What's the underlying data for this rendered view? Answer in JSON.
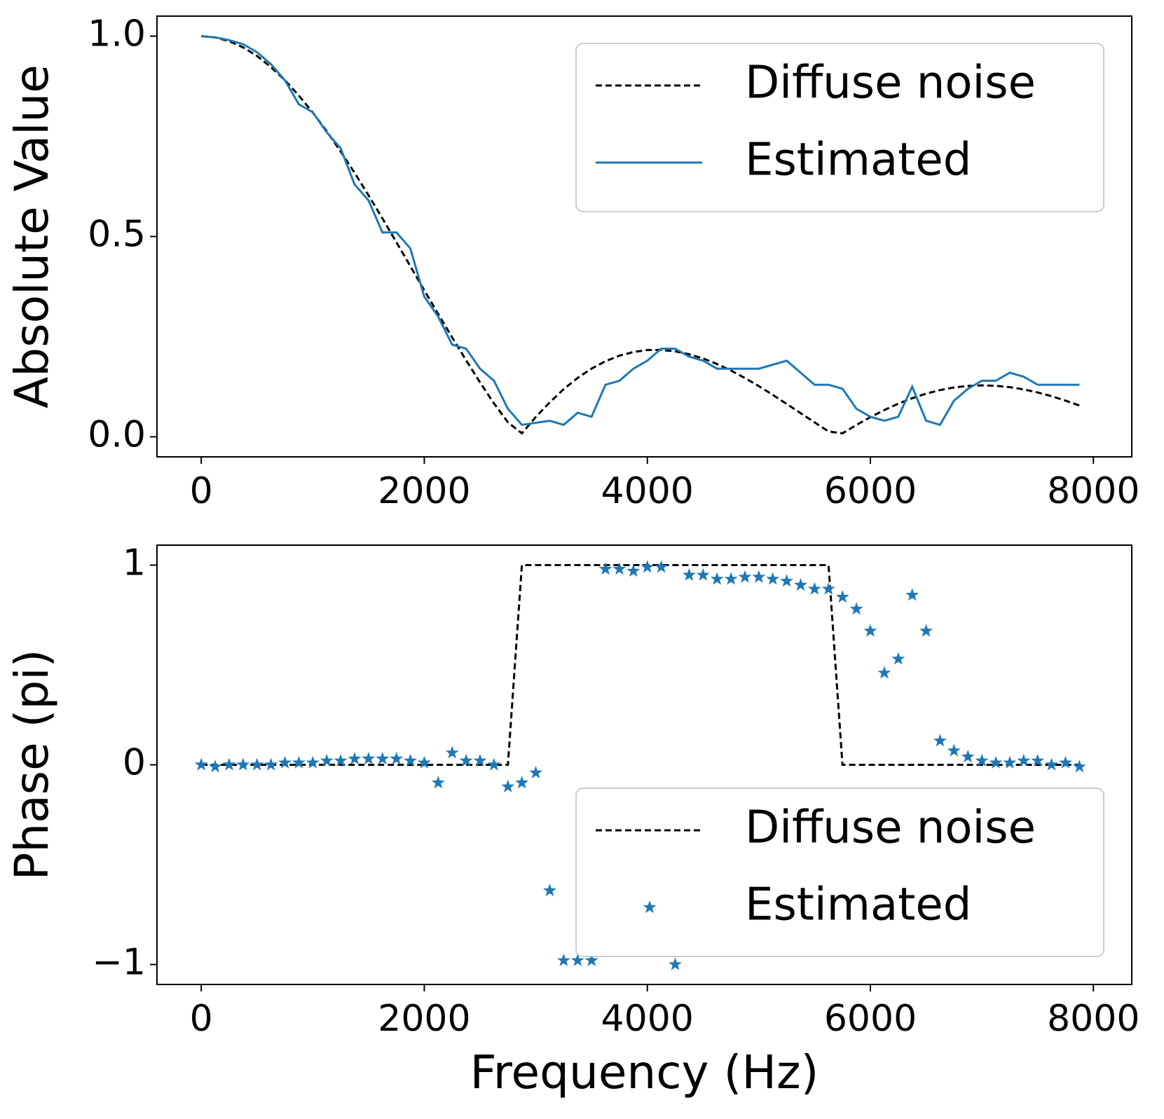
{
  "chart_data": [
    {
      "type": "line",
      "ylabel": "Absolute Value",
      "x": [
        0,
        125,
        250,
        375,
        500,
        625,
        750,
        875,
        1000,
        1125,
        1250,
        1375,
        1500,
        1625,
        1750,
        1875,
        2000,
        2125,
        2250,
        2375,
        2500,
        2625,
        2750,
        2875,
        3000,
        3125,
        3250,
        3375,
        3500,
        3625,
        3750,
        3875,
        4000,
        4125,
        4250,
        4375,
        4500,
        4625,
        4750,
        4875,
        5000,
        5125,
        5250,
        5375,
        5500,
        5625,
        5750,
        5875,
        6000,
        6125,
        6250,
        6375,
        6500,
        6625,
        6750,
        6875,
        7000,
        7125,
        7250,
        7375,
        7500,
        7625,
        7750,
        7875
      ],
      "series": [
        {
          "name": "Diffuse noise",
          "color": "#000000",
          "style": "dashed",
          "values": [
            1,
            0.9968,
            0.9874,
            0.972,
            0.9507,
            0.9227,
            0.8899,
            0.8519,
            0.8094,
            0.7627,
            0.7122,
            0.6588,
            0.6027,
            0.5447,
            0.4855,
            0.4256,
            0.3657,
            0.3064,
            0.2481,
            0.191,
            0.1359,
            0.0833,
            0.0363,
            0.0087,
            0.0497,
            0.0861,
            0.1189,
            0.1471,
            0.1702,
            0.1887,
            0.2026,
            0.2117,
            0.2165,
            0.2169,
            0.2134,
            0.2061,
            0.1955,
            0.1818,
            0.1654,
            0.1468,
            0.1265,
            0.1047,
            0.0821,
            0.059,
            0.036,
            0.0133,
            0.0087,
            0.0296,
            0.0491,
            0.0669,
            0.0827,
            0.0964,
            0.1077,
            0.1166,
            0.1231,
            0.127,
            0.1284,
            0.1273,
            0.124,
            0.1184,
            0.1108,
            0.1014,
            0.0903,
            0.078
          ]
        },
        {
          "name": "Estimated",
          "color": "#1f77b4",
          "style": "solid",
          "values": [
            1.0,
            0.997,
            0.99,
            0.98,
            0.96,
            0.93,
            0.89,
            0.83,
            0.81,
            0.76,
            0.72,
            0.63,
            0.59,
            0.51,
            0.51,
            0.47,
            0.35,
            0.3,
            0.23,
            0.22,
            0.17,
            0.14,
            0.07,
            0.03,
            0.035,
            0.04,
            0.03,
            0.06,
            0.05,
            0.13,
            0.14,
            0.17,
            0.19,
            0.22,
            0.22,
            0.2,
            0.19,
            0.17,
            0.17,
            0.17,
            0.17,
            0.18,
            0.19,
            0.16,
            0.13,
            0.13,
            0.12,
            0.07,
            0.05,
            0.04,
            0.05,
            0.125,
            0.04,
            0.03,
            0.09,
            0.12,
            0.14,
            0.14,
            0.16,
            0.15,
            0.13,
            0.13,
            0.13,
            0.13
          ]
        }
      ],
      "xlim": [
        -397,
        8344
      ],
      "xticks": [
        0,
        2000,
        4000,
        6000,
        8000
      ],
      "ylim": [
        -0.05,
        1.05
      ],
      "yticks": [
        {
          "value": 0,
          "label": "0.0"
        },
        0.5,
        {
          "value": 1,
          "label": "1.0"
        }
      ],
      "legend": "upper right"
    },
    {
      "type": "line",
      "ylabel": "Phase (pi)",
      "xlabel": "Frequency (Hz)",
      "x": [
        0,
        125,
        250,
        375,
        500,
        625,
        750,
        875,
        1000,
        1125,
        1250,
        1375,
        1500,
        1625,
        1750,
        1875,
        2000,
        2125,
        2250,
        2375,
        2500,
        2625,
        2750,
        2875,
        3000,
        3125,
        3250,
        3375,
        3500,
        3625,
        3750,
        3875,
        4000,
        4125,
        4250,
        4375,
        4500,
        4625,
        4750,
        4875,
        5000,
        5125,
        5250,
        5375,
        5500,
        5625,
        5750,
        5875,
        6000,
        6125,
        6250,
        6375,
        6500,
        6625,
        6750,
        6875,
        7000,
        7125,
        7250,
        7375,
        7500,
        7625,
        7750,
        7875
      ],
      "series": [
        {
          "name": "Diffuse noise",
          "color": "#000000",
          "style": "dashed",
          "values": [
            0,
            0,
            0,
            0,
            0,
            0,
            0,
            0,
            0,
            0,
            0,
            0,
            0,
            0,
            0,
            0,
            0,
            0,
            0,
            0,
            0,
            0,
            0,
            1,
            1,
            1,
            1,
            1,
            1,
            1,
            1,
            1,
            1,
            1,
            1,
            1,
            1,
            1,
            1,
            1,
            1,
            1,
            1,
            1,
            1,
            1,
            0,
            0,
            0,
            0,
            0,
            0,
            0,
            0,
            0,
            0,
            0,
            0,
            0,
            0,
            0,
            0,
            0,
            0
          ]
        },
        {
          "name": "Estimated",
          "color": "#1f77b4",
          "style": "markers",
          "values": [
            0,
            -0.01,
            0,
            0,
            0,
            0,
            0.01,
            0.01,
            0.01,
            0.02,
            0.02,
            0.03,
            0.03,
            0.03,
            0.03,
            0.02,
            0.01,
            -0.09,
            0.06,
            0.02,
            0.02,
            0,
            -0.11,
            -0.09,
            -0.04,
            -0.63,
            -0.98,
            -0.98,
            -0.98,
            0.98,
            0.98,
            0.97,
            0.99,
            0.99,
            -1.0,
            0.95,
            0.95,
            0.93,
            0.93,
            0.94,
            0.94,
            0.93,
            0.92,
            0.9,
            0.88,
            0.88,
            0.84,
            0.78,
            0.67,
            0.46,
            0.53,
            0.85,
            0.67,
            0.12,
            0.07,
            0.04,
            0.02,
            0.01,
            0.01,
            0.02,
            0.02,
            0,
            0.01,
            -0.01
          ]
        }
      ],
      "xlim": [
        -397,
        8344
      ],
      "xticks": [
        0,
        2000,
        4000,
        6000,
        8000
      ],
      "ylim": [
        -1.1,
        1.1
      ],
      "yticks": [
        {
          "value": -1,
          "label": "−1"
        },
        0,
        1
      ],
      "legend": "lower right"
    }
  ]
}
